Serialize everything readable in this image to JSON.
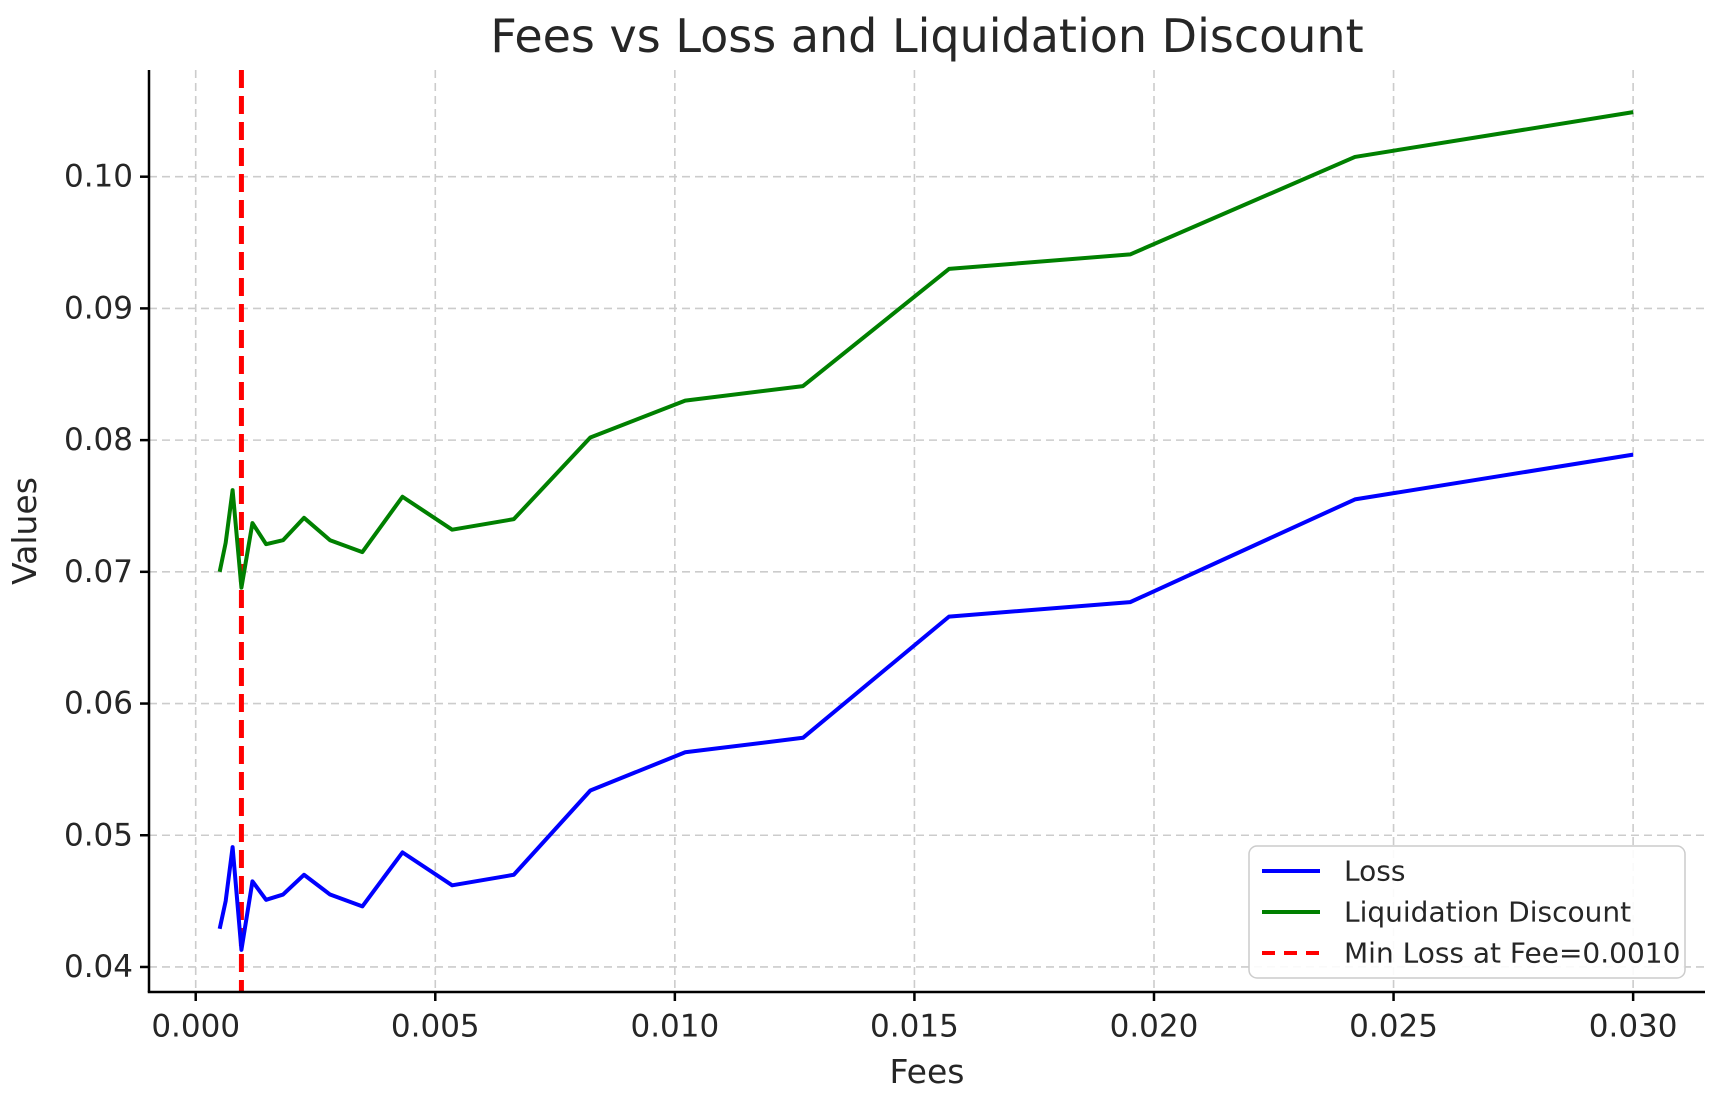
{
  "page": {
    "title": "Fees vs Loss and Liquidation Discount"
  },
  "chart_data": {
    "type": "line",
    "title": "Fees vs Loss and Liquidation Discount",
    "xlabel": "Fees",
    "ylabel": "Values",
    "xlim": [
      -0.000975,
      0.0315
    ],
    "ylim": [
      0.0381,
      0.1081
    ],
    "x_ticks": [
      0.0,
      0.005,
      0.01,
      0.015,
      0.02,
      0.025,
      0.03
    ],
    "x_tick_labels": [
      "0.000",
      "0.005",
      "0.010",
      "0.015",
      "0.020",
      "0.025",
      "0.030"
    ],
    "y_ticks": [
      0.04,
      0.05,
      0.06,
      0.07,
      0.08,
      0.09,
      0.1
    ],
    "y_tick_labels": [
      "0.04",
      "0.05",
      "0.06",
      "0.07",
      "0.08",
      "0.09",
      "0.10"
    ],
    "grid": true,
    "grid_style": "dashed",
    "legend_position": "lower right",
    "x": [
      0.0005,
      0.000625,
      0.00077,
      0.000954,
      0.001184,
      0.001469,
      0.001822,
      0.00226,
      0.002804,
      0.003478,
      0.004315,
      0.005352,
      0.006639,
      0.008236,
      0.010216,
      0.012674,
      0.015722,
      0.019503,
      0.024194,
      0.03
    ],
    "series": [
      {
        "name": "Loss",
        "color": "#0000ff",
        "line_style": "solid",
        "values": [
          0.0429,
          0.045,
          0.0491,
          0.0413,
          0.0465,
          0.0451,
          0.0455,
          0.047,
          0.0455,
          0.0446,
          0.0487,
          0.0462,
          0.047,
          0.0534,
          0.0563,
          0.0574,
          0.0666,
          0.0677,
          0.0755,
          0.0789
        ]
      },
      {
        "name": "Liquidation Discount",
        "color": "#008000",
        "line_style": "solid",
        "values": [
          0.07,
          0.0722,
          0.0762,
          0.0688,
          0.0737,
          0.0721,
          0.0724,
          0.0741,
          0.0724,
          0.0715,
          0.0757,
          0.0732,
          0.074,
          0.0802,
          0.083,
          0.0841,
          0.093,
          0.0941,
          0.1015,
          0.1049
        ]
      }
    ],
    "vline": {
      "label": "Min Loss at Fee=0.0010",
      "x": 0.000954,
      "color": "#ff0000",
      "line_style": "dashed"
    }
  },
  "legend": {
    "items": [
      {
        "label": "Loss",
        "color": "#0000ff",
        "dashed": false
      },
      {
        "label": "Liquidation Discount",
        "color": "#008000",
        "dashed": false
      },
      {
        "label": "Min Loss at Fee=0.0010",
        "color": "#ff0000",
        "dashed": true
      }
    ]
  },
  "colors": {
    "loss_line": "#0000ff",
    "liquidation_discount_line": "#008000",
    "min_loss_vline": "#ff0000",
    "grid": "#cccccc",
    "spine": "#000000",
    "text": "#262626",
    "background": "#ffffff",
    "legend_border": "#cccccc"
  }
}
